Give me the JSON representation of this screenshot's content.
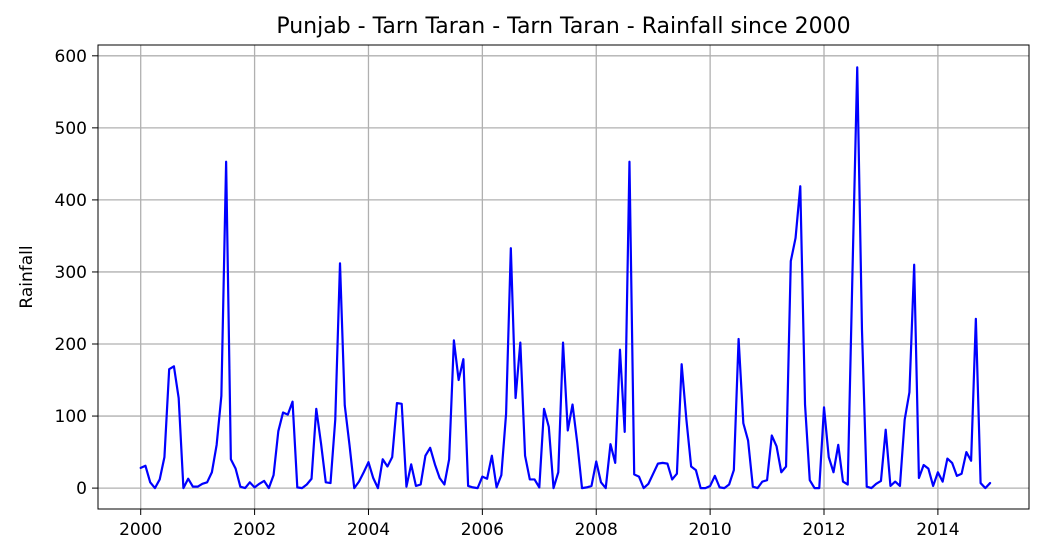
{
  "chart_data": {
    "type": "line",
    "title": "Punjab - Tarn Taran - Tarn Taran - Rainfall since 2000",
    "xlabel": "",
    "ylabel": "Rainfall",
    "xlim": [
      1999.25,
      2015.6
    ],
    "ylim": [
      -29,
      615
    ],
    "grid": true,
    "x_ticks": [
      2000,
      2002,
      2004,
      2006,
      2008,
      2010,
      2012,
      2014
    ],
    "x_tick_labels": [
      "2000",
      "2002",
      "2004",
      "2006",
      "2008",
      "2010",
      "2012",
      "2014"
    ],
    "y_ticks": [
      0,
      100,
      200,
      300,
      400,
      500,
      600
    ],
    "y_tick_labels": [
      "0",
      "100",
      "200",
      "300",
      "400",
      "500",
      "600"
    ],
    "colors": {
      "line": "#0000ff",
      "grid": "#b0b0b0",
      "axis": "#000000"
    },
    "series": [
      {
        "x_start": "2000-01",
        "frequency": "monthly",
        "values": [
          28,
          31,
          8,
          0,
          12,
          43,
          165,
          169,
          125,
          0,
          13,
          2,
          2,
          6,
          8,
          22,
          60,
          128,
          453,
          40,
          27,
          2,
          0,
          8,
          1,
          6,
          10,
          0,
          18,
          79,
          105,
          102,
          120,
          1,
          0,
          5,
          13,
          110,
          62,
          8,
          7,
          95,
          312,
          115,
          60,
          0,
          9,
          22,
          36,
          14,
          0,
          40,
          30,
          43,
          118,
          117,
          2,
          33,
          3,
          5,
          45,
          56,
          33,
          14,
          5,
          40,
          205,
          150,
          179,
          3,
          1,
          0,
          16,
          13,
          45,
          1,
          18,
          103,
          333,
          125,
          202,
          45,
          12,
          12,
          1,
          110,
          85,
          0,
          22,
          202,
          80,
          116,
          63,
          0,
          1,
          3,
          37,
          8,
          0,
          61,
          35,
          192,
          78,
          453,
          19,
          16,
          0,
          6,
          20,
          34,
          35,
          34,
          12,
          20,
          172,
          95,
          30,
          25,
          0,
          0,
          3,
          17,
          1,
          0,
          5,
          25,
          207,
          90,
          66,
          2,
          0,
          9,
          11,
          73,
          58,
          22,
          30,
          315,
          347,
          419,
          116,
          11,
          0,
          0,
          112,
          43,
          22,
          60,
          9,
          5,
          300,
          584,
          220,
          2,
          0,
          6,
          10,
          81,
          3,
          9,
          3,
          95,
          133,
          310,
          14,
          32,
          27,
          3,
          22,
          9,
          41,
          35,
          17,
          20,
          50,
          38,
          235,
          7,
          0,
          7
        ]
      }
    ]
  }
}
